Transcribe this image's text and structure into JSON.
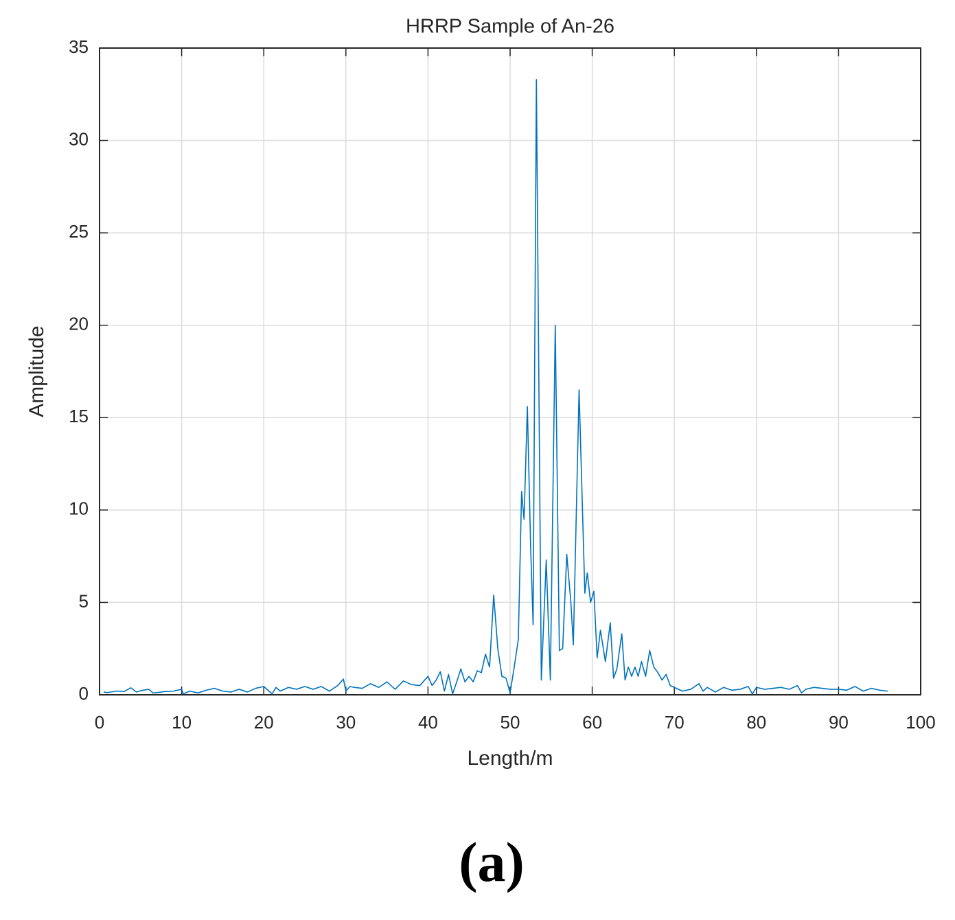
{
  "chart_data": {
    "type": "line",
    "title": "HRRP Sample of An-26",
    "xlabel": "Length/m",
    "ylabel": "Amplitude",
    "x": [
      0.5,
      1,
      2,
      3,
      3.8,
      4.5,
      5,
      6,
      6.5,
      7,
      8,
      9,
      10,
      10.2,
      11,
      12,
      13,
      14,
      15,
      16,
      17,
      18,
      19,
      20,
      21,
      21.5,
      22,
      23,
      24,
      25,
      26,
      27,
      28,
      29,
      29.7,
      30,
      30.5,
      31,
      32,
      33,
      34,
      35,
      36,
      37,
      38,
      39,
      40,
      40.5,
      41,
      41.5,
      42,
      42.5,
      43,
      43.5,
      44,
      44.5,
      45,
      45.5,
      46,
      46.5,
      47,
      47.5,
      48,
      48.5,
      49,
      49.5,
      50,
      50.5,
      51,
      51.4,
      51.7,
      52.1,
      52.5,
      52.8,
      53.2,
      53.8,
      54.4,
      54.9,
      55.5,
      56,
      56.4,
      56.9,
      57.4,
      57.7,
      58.4,
      59.1,
      59.4,
      59.8,
      60.2,
      60.6,
      61,
      61.6,
      62.2,
      62.6,
      63,
      63.6,
      64,
      64.4,
      64.8,
      65.2,
      65.6,
      66,
      66.5,
      67,
      67.5,
      68,
      68.5,
      69,
      69.5,
      70,
      71,
      72,
      73,
      73.5,
      74,
      75,
      76,
      77,
      78,
      79,
      79.5,
      80,
      81,
      82,
      83,
      84,
      85,
      85.5,
      86,
      87,
      88,
      89,
      90,
      91,
      92,
      93,
      94,
      95,
      96
    ],
    "series": [
      {
        "name": "HRRP",
        "color": "#0072bd",
        "values": [
          0.15,
          0.12,
          0.2,
          0.18,
          0.38,
          0.15,
          0.22,
          0.3,
          0.1,
          0.12,
          0.18,
          0.2,
          0.3,
          0.05,
          0.2,
          0.1,
          0.25,
          0.35,
          0.2,
          0.15,
          0.3,
          0.15,
          0.35,
          0.45,
          0.05,
          0.4,
          0.2,
          0.4,
          0.3,
          0.45,
          0.3,
          0.45,
          0.2,
          0.5,
          0.85,
          0.2,
          0.45,
          0.4,
          0.35,
          0.6,
          0.4,
          0.7,
          0.3,
          0.75,
          0.55,
          0.5,
          1.0,
          0.5,
          0.8,
          1.25,
          0.2,
          1.1,
          0.05,
          0.7,
          1.4,
          0.7,
          1.0,
          0.7,
          1.3,
          1.2,
          2.2,
          1.5,
          5.4,
          2.5,
          1.0,
          0.9,
          0.1,
          1.5,
          3.0,
          11.0,
          9.5,
          15.6,
          8.0,
          3.8,
          33.3,
          0.8,
          7.3,
          0.8,
          20.0,
          2.4,
          2.5,
          7.6,
          5.0,
          2.7,
          16.5,
          5.5,
          6.6,
          5.0,
          5.6,
          2.0,
          3.5,
          1.8,
          3.9,
          0.9,
          1.4,
          3.3,
          0.8,
          1.5,
          1.0,
          1.5,
          1.0,
          1.8,
          1.0,
          2.4,
          1.5,
          1.2,
          0.8,
          1.1,
          0.5,
          0.4,
          0.2,
          0.3,
          0.6,
          0.2,
          0.4,
          0.15,
          0.4,
          0.25,
          0.3,
          0.45,
          0.05,
          0.4,
          0.3,
          0.35,
          0.4,
          0.3,
          0.5,
          0.1,
          0.3,
          0.4,
          0.35,
          0.3,
          0.3,
          0.25,
          0.45,
          0.2,
          0.35,
          0.25,
          0.2
        ]
      }
    ],
    "xlim": [
      0,
      100
    ],
    "xticks": [
      0,
      10,
      20,
      30,
      40,
      50,
      60,
      70,
      80,
      90,
      100
    ],
    "ylim": [
      0,
      35
    ],
    "yticks": [
      0,
      5,
      10,
      15,
      20,
      25,
      30,
      35
    ],
    "grid": true
  },
  "caption": "(a)"
}
